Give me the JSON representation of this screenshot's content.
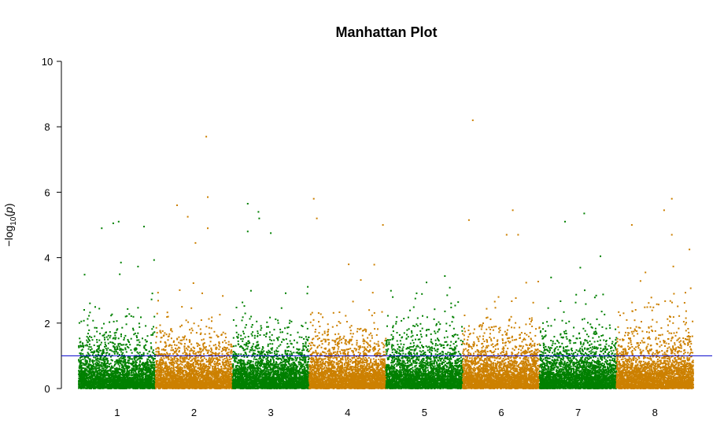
{
  "chart_data": {
    "type": "scatter",
    "title": "Manhattan Plot",
    "ylabel_prefix": "−log",
    "ylabel_sub": "10",
    "ylabel_var": "p",
    "xlabel": "",
    "ylim": [
      0,
      10
    ],
    "yticks": [
      "0",
      "2",
      "4",
      "6",
      "8",
      "10"
    ],
    "categories": [
      "1",
      "2",
      "3",
      "4",
      "5",
      "6",
      "7",
      "8"
    ],
    "colors": [
      "#008000",
      "#CC8000"
    ],
    "threshold": {
      "value": 1,
      "color": "#0000CC"
    },
    "points_per_chromosome": 3000,
    "top_hits": [
      {
        "chr": "1",
        "pos": 0.3,
        "value": 4.9
      },
      {
        "chr": "1",
        "pos": 0.45,
        "value": 5.05
      },
      {
        "chr": "1",
        "pos": 0.52,
        "value": 5.1
      },
      {
        "chr": "1",
        "pos": 0.55,
        "value": 3.85
      },
      {
        "chr": "1",
        "pos": 0.85,
        "value": 4.95
      },
      {
        "chr": "2",
        "pos": 0.28,
        "value": 5.6
      },
      {
        "chr": "2",
        "pos": 0.42,
        "value": 5.25
      },
      {
        "chr": "2",
        "pos": 0.52,
        "value": 4.45
      },
      {
        "chr": "2",
        "pos": 0.66,
        "value": 7.7
      },
      {
        "chr": "2",
        "pos": 0.68,
        "value": 5.85
      },
      {
        "chr": "2",
        "pos": 0.68,
        "value": 4.9
      },
      {
        "chr": "3",
        "pos": 0.2,
        "value": 5.65
      },
      {
        "chr": "3",
        "pos": 0.2,
        "value": 4.8
      },
      {
        "chr": "3",
        "pos": 0.34,
        "value": 5.4
      },
      {
        "chr": "3",
        "pos": 0.35,
        "value": 5.2
      },
      {
        "chr": "3",
        "pos": 0.5,
        "value": 4.75
      },
      {
        "chr": "4",
        "pos": 0.06,
        "value": 5.8
      },
      {
        "chr": "4",
        "pos": 0.1,
        "value": 5.2
      },
      {
        "chr": "4",
        "pos": 0.96,
        "value": 5.0
      },
      {
        "chr": "6",
        "pos": 0.13,
        "value": 8.2
      },
      {
        "chr": "6",
        "pos": 0.08,
        "value": 5.15
      },
      {
        "chr": "6",
        "pos": 0.65,
        "value": 5.45
      },
      {
        "chr": "6",
        "pos": 0.72,
        "value": 4.7
      },
      {
        "chr": "6",
        "pos": 0.57,
        "value": 4.7
      },
      {
        "chr": "7",
        "pos": 0.33,
        "value": 5.1
      },
      {
        "chr": "7",
        "pos": 0.58,
        "value": 5.35
      },
      {
        "chr": "8",
        "pos": 0.62,
        "value": 5.45
      },
      {
        "chr": "8",
        "pos": 0.72,
        "value": 5.8
      },
      {
        "chr": "8",
        "pos": 0.72,
        "value": 4.7
      },
      {
        "chr": "8",
        "pos": 0.2,
        "value": 5.0
      },
      {
        "chr": "8",
        "pos": 0.95,
        "value": 4.25
      }
    ]
  }
}
